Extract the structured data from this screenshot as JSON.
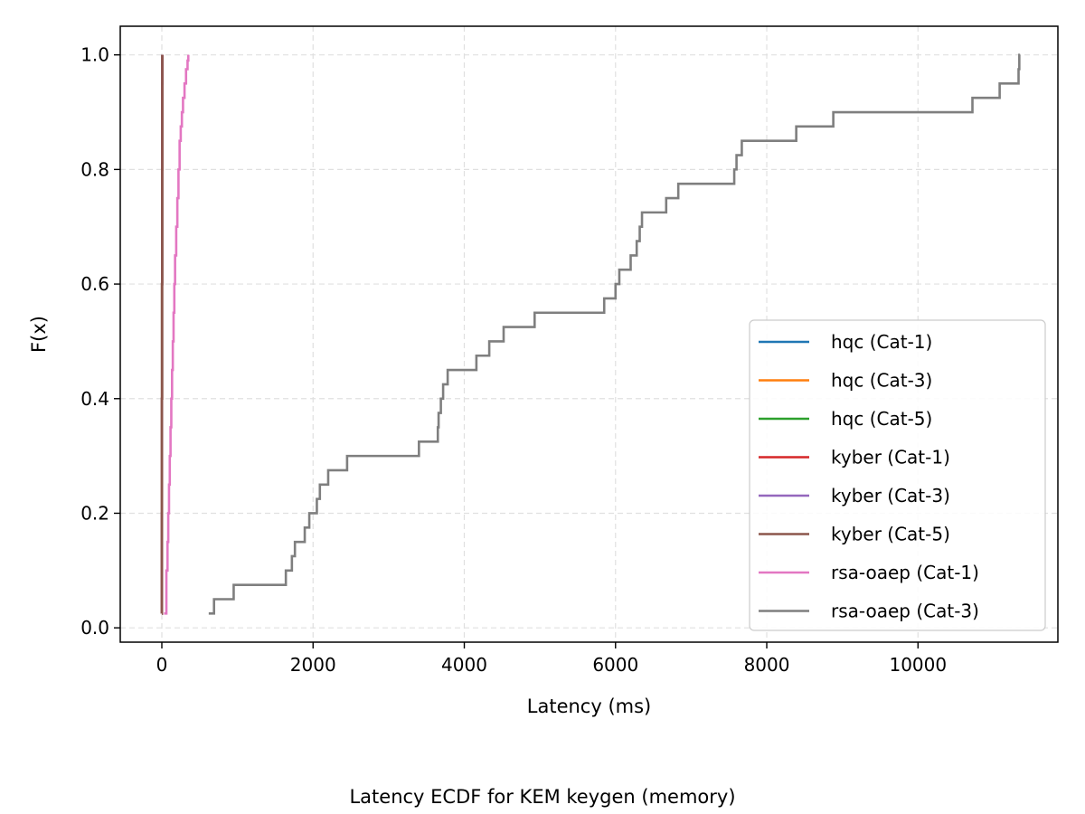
{
  "chart_data": {
    "type": "line",
    "step": "post",
    "title": "",
    "caption": "Latency ECDF for KEM keygen (memory)",
    "xlabel": "Latency (ms)",
    "ylabel": "F(x)",
    "xlim": [
      -550,
      11850
    ],
    "ylim": [
      -0.025,
      1.05
    ],
    "xticks": [
      0,
      2000,
      4000,
      6000,
      8000,
      10000
    ],
    "yticks": [
      0.0,
      0.2,
      0.4,
      0.6,
      0.8,
      1.0
    ],
    "xtick_labels": [
      "0",
      "2000",
      "4000",
      "6000",
      "8000",
      "10000"
    ],
    "ytick_labels": [
      "0.0",
      "0.2",
      "0.4",
      "0.6",
      "0.8",
      "1.0"
    ],
    "grid": true,
    "legend_position": "lower-right",
    "series": [
      {
        "name": "hqc (Cat-1)",
        "color": "#1f77b4",
        "x": [
          0.5,
          1,
          2,
          3,
          4,
          5,
          6
        ],
        "y": [
          0.025,
          0.2,
          0.4,
          0.6,
          0.8,
          0.95,
          1.0
        ]
      },
      {
        "name": "hqc (Cat-3)",
        "color": "#ff7f0e",
        "x": [
          0.5,
          1,
          2,
          3,
          4,
          5,
          6
        ],
        "y": [
          0.025,
          0.2,
          0.4,
          0.6,
          0.8,
          0.95,
          1.0
        ]
      },
      {
        "name": "hqc (Cat-5)",
        "color": "#2ca02c",
        "x": [
          0.5,
          1,
          2,
          3,
          4,
          5,
          6
        ],
        "y": [
          0.025,
          0.2,
          0.4,
          0.6,
          0.8,
          0.95,
          1.0
        ]
      },
      {
        "name": "kyber (Cat-1)",
        "color": "#d62728",
        "x": [
          0.5,
          1,
          2,
          3,
          4,
          5,
          6
        ],
        "y": [
          0.025,
          0.2,
          0.4,
          0.6,
          0.8,
          0.95,
          1.0
        ]
      },
      {
        "name": "kyber (Cat-3)",
        "color": "#9467bd",
        "x": [
          0.5,
          1,
          2,
          3,
          4,
          5,
          6
        ],
        "y": [
          0.025,
          0.2,
          0.4,
          0.6,
          0.8,
          0.95,
          1.0
        ]
      },
      {
        "name": "kyber (Cat-5)",
        "color": "#8c564b",
        "x": [
          0.5,
          1,
          2,
          3,
          4,
          5,
          6
        ],
        "y": [
          0.025,
          0.2,
          0.4,
          0.6,
          0.8,
          0.95,
          1.0
        ]
      },
      {
        "name": "rsa-oaep (Cat-1)",
        "color": "#e377c2",
        "x": [
          30,
          60,
          75,
          85,
          95,
          105,
          115,
          125,
          135,
          145,
          155,
          165,
          175,
          190,
          205,
          220,
          235,
          250,
          265,
          280,
          300,
          320,
          340,
          350
        ],
        "y": [
          0.025,
          0.1,
          0.15,
          0.2,
          0.25,
          0.3,
          0.35,
          0.4,
          0.45,
          0.5,
          0.55,
          0.6,
          0.65,
          0.7,
          0.75,
          0.8,
          0.85,
          0.875,
          0.9,
          0.925,
          0.95,
          0.975,
          0.99,
          1.0
        ]
      },
      {
        "name": "rsa-oaep (Cat-3)",
        "color": "#7f7f7f",
        "x": [
          620,
          690,
          950,
          1640,
          1720,
          1760,
          1890,
          1950,
          2050,
          2090,
          2100,
          2200,
          2450,
          3400,
          3650,
          3660,
          3690,
          3720,
          3780,
          3810,
          4160,
          4330,
          4520,
          4930,
          5850,
          6000,
          6050,
          6200,
          6280,
          6320,
          6350,
          6670,
          6830,
          7570,
          7600,
          7670,
          7700,
          8390,
          8880,
          10720,
          11080,
          11330,
          11340,
          11350
        ],
        "y": [
          0.025,
          0.05,
          0.075,
          0.1,
          0.125,
          0.15,
          0.175,
          0.2,
          0.225,
          0.25,
          0.25,
          0.275,
          0.3,
          0.325,
          0.35,
          0.375,
          0.4,
          0.425,
          0.45,
          0.45,
          0.475,
          0.5,
          0.525,
          0.55,
          0.575,
          0.6,
          0.625,
          0.65,
          0.675,
          0.7,
          0.725,
          0.75,
          0.775,
          0.8,
          0.825,
          0.85,
          0.85,
          0.875,
          0.9,
          0.925,
          0.95,
          0.975,
          1.0,
          1.0
        ]
      }
    ]
  }
}
